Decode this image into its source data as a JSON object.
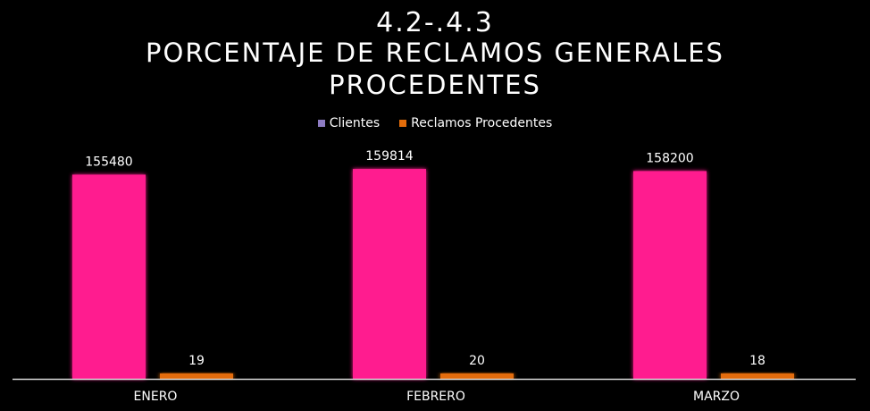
{
  "chart_data": {
    "type": "bar",
    "title_lines": [
      "4.2-.4.3",
      "PORCENTAJE DE RECLAMOS GENERALES",
      "PROCEDENTES"
    ],
    "categories": [
      "ENERO",
      "FEBRERO",
      "MARZO"
    ],
    "series": [
      {
        "name": "Clientes",
        "values": [
          155480,
          159814,
          158200
        ],
        "legend_color": "#8e7cc3",
        "bar_color": "#ff1f8f"
      },
      {
        "name": "Reclamos Procedentes",
        "values": [
          19,
          20,
          18
        ],
        "legend_color": "#e36c0a",
        "bar_color": "#e36c0a"
      }
    ],
    "legend_position": "top",
    "grid": false,
    "ylim": [
      0,
      200000
    ]
  },
  "colors": {
    "background": "#000000",
    "text": "#ffffff",
    "axis": "#d9d9d9"
  }
}
